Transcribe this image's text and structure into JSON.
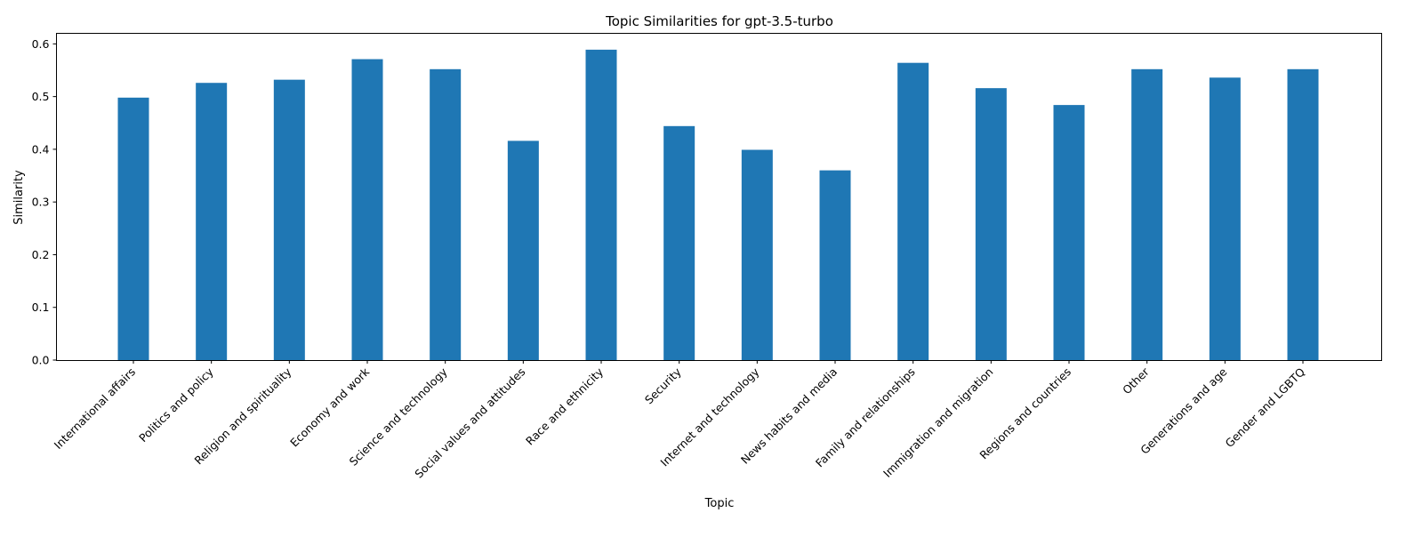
{
  "chart_data": {
    "type": "bar",
    "title": "Topic Similarities for gpt-3.5-turbo",
    "xlabel": "Topic",
    "ylabel": "Similarity",
    "ylim": [
      0,
      0.62
    ],
    "yticks": [
      "0.0",
      "0.1",
      "0.2",
      "0.3",
      "0.4",
      "0.5",
      "0.6"
    ],
    "grid": false,
    "bar_color": "#1f77b4",
    "categories": [
      "International affairs",
      "Politics and policy",
      "Religion and spirituality",
      "Economy and work",
      "Science and technology",
      "Social values and attitudes",
      "Race and ethnicity",
      "Security",
      "Internet and technology",
      "News habits and media",
      "Family and relationships",
      "Immigration and migration",
      "Regions and countries",
      "Other",
      "Generations and age",
      "Gender and LGBTQ"
    ],
    "values": [
      0.498,
      0.526,
      0.532,
      0.571,
      0.552,
      0.416,
      0.589,
      0.444,
      0.399,
      0.36,
      0.564,
      0.516,
      0.484,
      0.552,
      0.536,
      0.552
    ]
  }
}
